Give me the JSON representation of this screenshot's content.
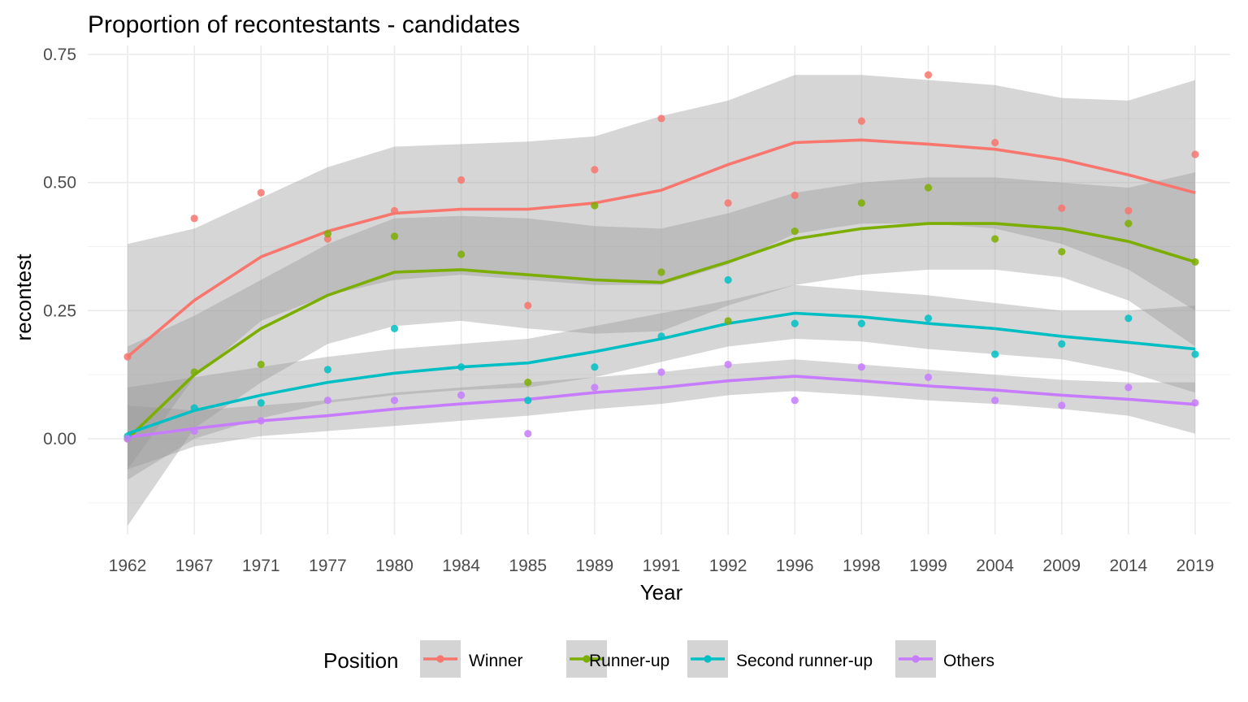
{
  "chart_data": {
    "type": "scatter",
    "title": "Proportion of recontestants - candidates",
    "xlabel": "Year",
    "ylabel": "recontest",
    "categories": [
      "1962",
      "1967",
      "1971",
      "1977",
      "1980",
      "1984",
      "1985",
      "1989",
      "1991",
      "1992",
      "1996",
      "1998",
      "1999",
      "2004",
      "2009",
      "2014",
      "2019"
    ],
    "ylim": [
      -0.17,
      0.75
    ],
    "yticks": [
      0.0,
      0.25,
      0.5,
      0.75
    ],
    "ytick_labels": [
      "0.00",
      "0.25",
      "0.50",
      "0.75"
    ],
    "grid": true,
    "legend": {
      "title": "Position",
      "placement": "bottom"
    },
    "series": [
      {
        "name": "Winner",
        "color": "#F8766D",
        "points": [
          0.16,
          0.43,
          0.48,
          0.39,
          0.445,
          0.505,
          0.26,
          0.525,
          0.625,
          0.46,
          0.475,
          0.62,
          0.71,
          0.578,
          0.45,
          0.445,
          0.555
        ],
        "smooth": [
          0.16,
          0.27,
          0.355,
          0.405,
          0.44,
          0.448,
          0.448,
          0.46,
          0.485,
          0.535,
          0.578,
          0.583,
          0.575,
          0.565,
          0.545,
          0.515,
          0.48
        ],
        "band_low": [
          -0.06,
          0.12,
          0.23,
          0.28,
          0.31,
          0.32,
          0.31,
          0.3,
          0.3,
          0.34,
          0.4,
          0.42,
          0.42,
          0.41,
          0.38,
          0.33,
          0.25
        ],
        "band_high": [
          0.38,
          0.41,
          0.47,
          0.53,
          0.57,
          0.575,
          0.58,
          0.59,
          0.63,
          0.66,
          0.71,
          0.71,
          0.7,
          0.69,
          0.665,
          0.66,
          0.7
        ]
      },
      {
        "name": "Runner-up",
        "color": "#7CAE00",
        "points": [
          0.0,
          0.13,
          0.145,
          0.4,
          0.395,
          0.36,
          0.11,
          0.455,
          0.325,
          0.23,
          0.405,
          0.46,
          0.49,
          0.39,
          0.365,
          0.42,
          0.345
        ],
        "smooth": [
          0.0,
          0.125,
          0.215,
          0.28,
          0.325,
          0.33,
          0.32,
          0.31,
          0.305,
          0.345,
          0.39,
          0.41,
          0.42,
          0.42,
          0.41,
          0.385,
          0.345
        ],
        "band_low": [
          -0.17,
          0.02,
          0.11,
          0.185,
          0.22,
          0.23,
          0.215,
          0.205,
          0.21,
          0.26,
          0.3,
          0.32,
          0.33,
          0.33,
          0.315,
          0.27,
          0.18
        ],
        "band_high": [
          0.18,
          0.24,
          0.31,
          0.38,
          0.43,
          0.435,
          0.43,
          0.415,
          0.41,
          0.44,
          0.48,
          0.5,
          0.51,
          0.51,
          0.5,
          0.49,
          0.52
        ]
      },
      {
        "name": "Second runner-up",
        "color": "#00BFC4",
        "points": [
          0.005,
          0.06,
          0.07,
          0.135,
          0.215,
          0.14,
          0.075,
          0.14,
          0.2,
          0.31,
          0.225,
          0.225,
          0.235,
          0.165,
          0.185,
          0.235,
          0.165
        ],
        "smooth": [
          0.01,
          0.055,
          0.085,
          0.11,
          0.128,
          0.14,
          0.148,
          0.17,
          0.195,
          0.225,
          0.245,
          0.238,
          0.225,
          0.215,
          0.2,
          0.188,
          0.175
        ],
        "band_low": [
          -0.08,
          0.0,
          0.04,
          0.07,
          0.085,
          0.095,
          0.1,
          0.12,
          0.15,
          0.18,
          0.195,
          0.19,
          0.175,
          0.165,
          0.155,
          0.13,
          0.09
        ],
        "band_high": [
          0.1,
          0.12,
          0.14,
          0.16,
          0.175,
          0.185,
          0.195,
          0.22,
          0.245,
          0.27,
          0.3,
          0.29,
          0.28,
          0.265,
          0.25,
          0.25,
          0.26
        ]
      },
      {
        "name": "Others",
        "color": "#C77CFF",
        "points": [
          0.0,
          0.015,
          0.035,
          0.075,
          0.075,
          0.085,
          0.01,
          0.1,
          0.13,
          0.145,
          0.075,
          0.14,
          0.12,
          0.075,
          0.065,
          0.1,
          0.07
        ],
        "smooth": [
          0.003,
          0.02,
          0.035,
          0.045,
          0.058,
          0.068,
          0.077,
          0.09,
          0.1,
          0.113,
          0.122,
          0.113,
          0.103,
          0.095,
          0.085,
          0.077,
          0.067
        ],
        "band_low": [
          -0.06,
          -0.015,
          0.005,
          0.015,
          0.025,
          0.035,
          0.045,
          0.058,
          0.068,
          0.085,
          0.093,
          0.085,
          0.075,
          0.068,
          0.058,
          0.045,
          0.01
        ],
        "band_high": [
          0.065,
          0.055,
          0.065,
          0.075,
          0.09,
          0.1,
          0.11,
          0.12,
          0.13,
          0.145,
          0.155,
          0.145,
          0.135,
          0.125,
          0.115,
          0.11,
          0.11
        ]
      }
    ]
  }
}
